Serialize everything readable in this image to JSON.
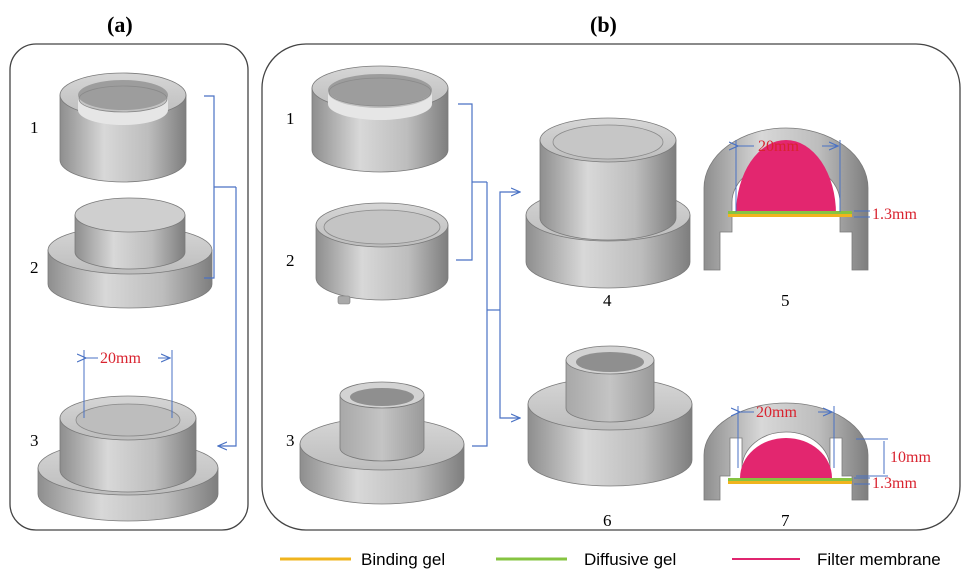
{
  "panels": {
    "a": {
      "label": "(a)"
    },
    "b": {
      "label": "(b)"
    }
  },
  "part_numbers": {
    "a1": "1",
    "a2": "2",
    "a3": "3",
    "b1": "1",
    "b2": "2",
    "b3": "3",
    "b4": "4",
    "b5": "5",
    "b6": "6",
    "b7": "7"
  },
  "dimensions": {
    "a3_diameter": "20mm",
    "b5_diameter": "20mm",
    "b5_thickness": "1.3mm",
    "b7_diameter": "20mm",
    "b7_height": "10mm",
    "b7_thickness": "1.3mm"
  },
  "legend": [
    {
      "label": "Binding gel",
      "color": "#f0b41e"
    },
    {
      "label": "Diffusive gel",
      "color": "#86c441"
    },
    {
      "label": "Filter membrane",
      "color": "#e0256f"
    }
  ],
  "colors": {
    "dimension_text": "#d9232f",
    "connector": "#4a72c4",
    "part_gray": "#c9c9c9"
  }
}
